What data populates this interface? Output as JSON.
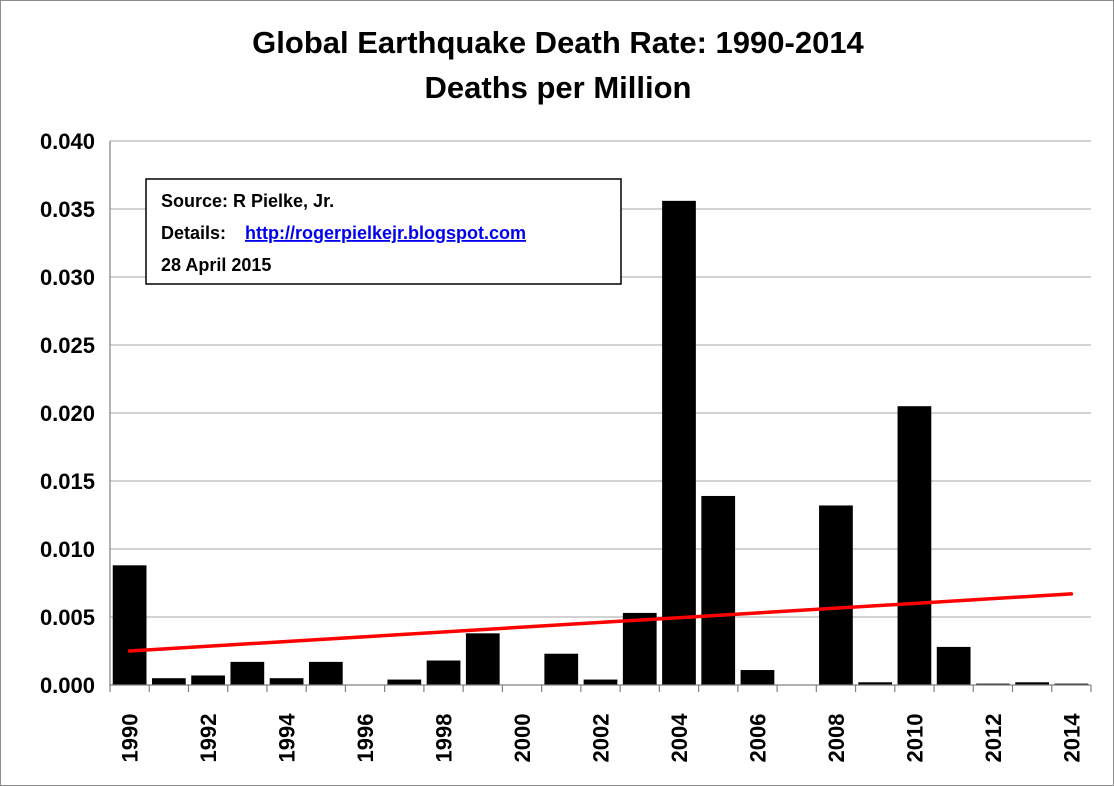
{
  "chart_data": {
    "type": "bar",
    "title": "Global Earthquake Death Rate: 1990-2014",
    "subtitle": "Deaths per Million",
    "xlabel": "",
    "ylabel": "",
    "ylim": [
      0,
      0.04
    ],
    "yticks": [
      "0.000",
      "0.005",
      "0.010",
      "0.015",
      "0.020",
      "0.025",
      "0.030",
      "0.035",
      "0.040"
    ],
    "grid": true,
    "legend": "none",
    "categories": [
      "1990",
      "1991",
      "1992",
      "1993",
      "1994",
      "1995",
      "1996",
      "1997",
      "1998",
      "1999",
      "2000",
      "2001",
      "2002",
      "2003",
      "2004",
      "2005",
      "2006",
      "2007",
      "2008",
      "2009",
      "2010",
      "2011",
      "2012",
      "2013",
      "2014"
    ],
    "xtick_labels": [
      "1990",
      "1992",
      "1994",
      "1996",
      "1998",
      "2000",
      "2002",
      "2004",
      "2006",
      "2008",
      "2010",
      "2012",
      "2014"
    ],
    "values": [
      0.0088,
      0.0005,
      0.0007,
      0.0017,
      0.0005,
      0.0017,
      0.0,
      0.0004,
      0.0018,
      0.0038,
      0.0,
      0.0023,
      0.0004,
      0.0053,
      0.0356,
      0.0139,
      0.0011,
      0.0,
      0.0132,
      0.0002,
      0.0205,
      0.0028,
      0.0001,
      0.0002,
      0.0001
    ],
    "trendline": {
      "start": {
        "x": "1990",
        "y": 0.0025
      },
      "end": {
        "x": "2014",
        "y": 0.0067
      },
      "color": "#ff0000"
    },
    "bar_color": "#000000",
    "annotation": {
      "source": "Source: R Pielke, Jr.",
      "details_label": "Details:",
      "details_link": "http://rogerpielkejr.blogspot.com",
      "date": "28 April 2015"
    }
  }
}
